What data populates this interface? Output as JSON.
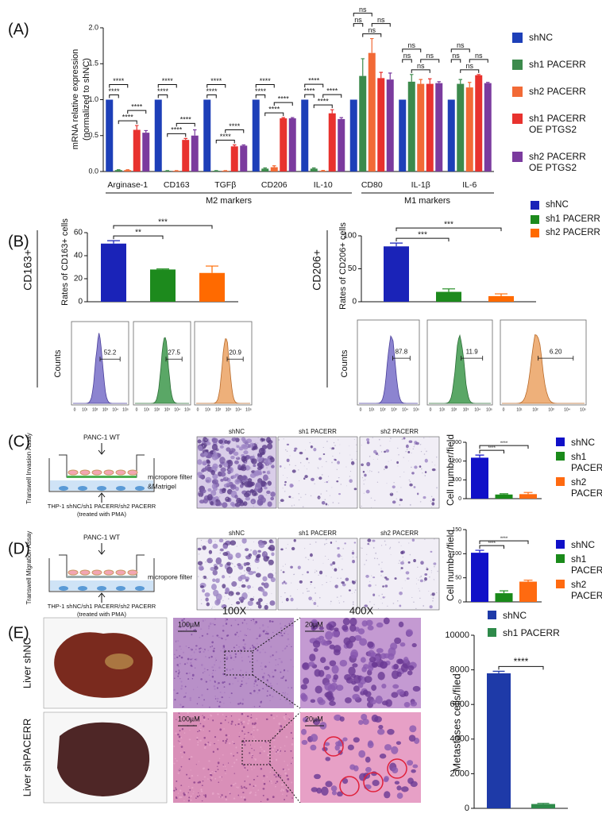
{
  "panel_labels": [
    "(A)",
    "(B)",
    "(C)",
    "(D)",
    "(E)"
  ],
  "chart_data": [
    {
      "type": "bar",
      "categories": [
        "Arginase-1",
        "CD163",
        "TGFβ",
        "CD206",
        "IL-10",
        "CD80",
        "IL-1β",
        "IL-6"
      ],
      "group_labels": [
        "M2 markers",
        "M1 markers"
      ],
      "ylabel": [
        "mRNA relative expression",
        "(normalized to shNC)"
      ],
      "ylim": [
        0,
        2.0
      ],
      "yticks": [
        {
          "value": 0,
          "label": "0.0"
        },
        {
          "value": 0.5,
          "label": "0.5"
        },
        {
          "value": 1,
          "label": "1.0"
        },
        {
          "value": 1.5,
          "label": "1.5"
        },
        {
          "value": 2,
          "label": "2.0"
        }
      ],
      "series": [
        {
          "name": "shNC",
          "color": "#1d3fb8",
          "values": [
            1,
            1,
            1,
            1,
            1,
            1,
            1,
            1
          ]
        },
        {
          "name": "sh1 PACERR",
          "color": "#3c8a4c",
          "values": [
            0.02,
            0.01,
            0.01,
            0.04,
            0.04,
            1.33,
            1.25,
            1.22
          ],
          "errors": [
            0.005,
            0.003,
            0.003,
            0.01,
            0.01,
            0.24,
            0.1,
            0.06
          ]
        },
        {
          "name": "sh2 PACERR",
          "color": "#f26a36",
          "values": [
            0.02,
            0.01,
            0.01,
            0.06,
            0.01,
            1.65,
            1.22,
            1.17
          ],
          "errors": [
            0.005,
            0.003,
            0.003,
            0.02,
            0.005,
            0.2,
            0.06,
            0.07
          ]
        },
        {
          "name": "sh1 PACERR OE PTGS2",
          "color": "#e8322e",
          "values": [
            0.58,
            0.44,
            0.35,
            0.74,
            0.81,
            1.3,
            1.22,
            1.34
          ],
          "errors": [
            0.06,
            0.02,
            0.02,
            0.01,
            0.05,
            0.08,
            0.07,
            0.01
          ]
        },
        {
          "name": "sh2 PACERR OE PTGS2",
          "color": "#7b3b9e",
          "values": [
            0.54,
            0.5,
            0.36,
            0.74,
            0.73,
            1.28,
            1.23,
            1.23
          ],
          "errors": [
            0.03,
            0.08,
            0.01,
            0.01,
            0.02,
            0.09,
            0.02,
            0.01
          ]
        }
      ],
      "pairs": [
        [
          1,
          3
        ],
        [
          0,
          1
        ],
        [
          2,
          4
        ],
        [
          0,
          2
        ]
      ],
      "significance": [
        [
          "****",
          "****",
          "****",
          "****"
        ],
        [
          "****",
          "****",
          "****",
          "****"
        ],
        [
          "****",
          "****",
          "****",
          "****"
        ],
        [
          "****",
          "****",
          "****",
          "****"
        ],
        [
          "****",
          "****",
          "****",
          "****"
        ],
        [
          "ns",
          "ns",
          "ns",
          "ns"
        ],
        [
          "ns",
          "ns",
          "ns",
          "ns"
        ],
        [
          "ns",
          "ns",
          "ns",
          "ns"
        ]
      ]
    },
    {
      "type": "bar",
      "ylabel": [
        "Rates of CD163+ cells"
      ],
      "ylim": [
        0,
        60
      ],
      "yticks": [
        0,
        20,
        40,
        60
      ],
      "series": [
        {
          "name": "shNC",
          "color": "#1a23b8",
          "values": [
            50.5
          ],
          "errors": [
            2.5
          ]
        },
        {
          "name": "sh1 PACERR",
          "color": "#1d8a1d",
          "values": [
            28
          ],
          "errors": [
            0.5
          ]
        },
        {
          "name": "sh2 PACERR",
          "color": "#ff6a00",
          "values": [
            25
          ],
          "errors": [
            6
          ]
        }
      ],
      "pairs": [
        [
          0,
          1
        ],
        [
          0,
          2
        ]
      ],
      "significance": [
        [
          "**",
          "***"
        ]
      ]
    },
    {
      "type": "bar",
      "ylabel": [
        "Rates of CD206+ cells"
      ],
      "ylim": [
        0,
        100
      ],
      "yticks": [
        0,
        50,
        100
      ],
      "series": [
        {
          "color": "#1a23b8",
          "values": [
            84
          ],
          "errors": [
            5
          ]
        },
        {
          "color": "#1d8a1d",
          "values": [
            15
          ],
          "errors": [
            4.5
          ]
        },
        {
          "color": "#ff6a00",
          "values": [
            8.5
          ],
          "errors": [
            3.5
          ]
        }
      ],
      "pairs": [
        [
          0,
          1
        ],
        [
          0,
          2
        ]
      ],
      "significance": [
        [
          "***",
          "***"
        ]
      ]
    },
    {
      "type": "bar",
      "ylabel": [
        "Cell number/field"
      ],
      "ylim": [
        0,
        300
      ],
      "yticks": [
        0,
        100,
        200,
        300
      ],
      "series": [
        {
          "name": "shNC",
          "color": "#1010c8",
          "values": [
            218
          ],
          "errors": [
            14
          ]
        },
        {
          "name": "sh1 PACERR",
          "color": "#1a8a1a",
          "values": [
            22
          ],
          "errors": [
            4
          ]
        },
        {
          "name": "sh2 PACERR",
          "color": "#ff6a10",
          "values": [
            24
          ],
          "errors": [
            9
          ]
        }
      ],
      "pairs": [
        [
          0,
          1
        ],
        [
          0,
          2
        ]
      ],
      "significance": [
        [
          "****",
          "****"
        ]
      ]
    },
    {
      "type": "bar",
      "ylabel": [
        "Cell number/field"
      ],
      "ylim": [
        0,
        150
      ],
      "yticks": [
        0,
        50,
        100,
        150
      ],
      "series": [
        {
          "name": "shNC",
          "color": "#1010c8",
          "values": [
            102
          ],
          "errors": [
            5
          ]
        },
        {
          "name": "sh1 PACERR",
          "color": "#1a8a1a",
          "values": [
            18
          ],
          "errors": [
            5
          ]
        },
        {
          "name": "sh2 PACERR",
          "color": "#ff6a10",
          "values": [
            42
          ],
          "errors": [
            3
          ]
        }
      ],
      "pairs": [
        [
          0,
          1
        ],
        [
          0,
          2
        ]
      ],
      "significance": [
        [
          "****",
          "****"
        ]
      ]
    },
    {
      "type": "bar",
      "ylabel": [
        "Metastases cells/filed"
      ],
      "ylim": [
        0,
        10000
      ],
      "yticks": [
        0,
        2000,
        4000,
        6000,
        8000,
        10000
      ],
      "series": [
        {
          "name": "shNC",
          "color": "#1e3aa8",
          "values": [
            7800
          ],
          "errors": [
            120
          ]
        },
        {
          "name": "sh1 PACERR",
          "color": "#2e8a4a",
          "values": [
            250
          ],
          "errors": [
            40
          ]
        }
      ],
      "pairs": [
        [
          0,
          1
        ]
      ],
      "significance": [
        [
          "****"
        ]
      ]
    }
  ],
  "flow": {
    "side_labels": [
      "CD163+",
      "CD206+"
    ],
    "ylabel": "Counts",
    "xticks": [
      "0",
      "10¹",
      "10²",
      "10³",
      "10⁴",
      "10⁵"
    ],
    "cd163": [
      "52.2",
      "27.5",
      "20.9"
    ],
    "cd206": [
      "87.8",
      "11.9",
      "6.20"
    ]
  },
  "transwell": [
    {
      "side_label": "Transwell Invasion Assay",
      "top": "PANC-1 WT",
      "filter": [
        "micropore filter",
        "&Matrigel"
      ],
      "bottom": [
        "THP-1 shNC/sh1 PACERR/sh2 PACERR",
        "(treated with PMA)"
      ],
      "images": [
        "shNC",
        "sh1 PACERR",
        "sh2 PACERR"
      ]
    },
    {
      "side_label": "Transwell Migration Assay",
      "top": "PANC-1 WT",
      "filter": [
        "micropore filter"
      ],
      "bottom": [
        "THP-1 shNC/sh1 PACERR/sh2 PACERR",
        "(treated with PMA)"
      ],
      "images": [
        "shNC",
        "sh1 PACERR",
        "sh2 PACERR"
      ]
    }
  ],
  "liver": {
    "columns": [
      "100X",
      "400X"
    ],
    "rows": [
      "Liver shNC",
      "Liver shPACERR"
    ],
    "scale": [
      [
        "100µM",
        "20µM"
      ],
      [
        "100µM",
        "20µM"
      ]
    ]
  }
}
